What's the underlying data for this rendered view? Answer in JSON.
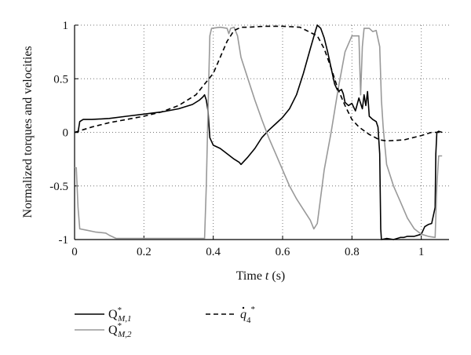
{
  "chart_data": {
    "type": "line",
    "title": "",
    "xlabel": "Time t (s)",
    "xlabel_parts": {
      "prefix": "Time ",
      "var": "t",
      "suffix": " (s)"
    },
    "ylabel": "Normalized torques and velocities",
    "xlim": [
      0,
      1.08
    ],
    "ylim": [
      -1,
      1
    ],
    "xticks": [
      "0",
      "0.2",
      "0.4",
      "0.6",
      "0.8",
      "1"
    ],
    "yticks": [
      "1",
      "0.5",
      "0",
      "-0.5",
      "-1"
    ],
    "xtick_values": [
      0,
      0.2,
      0.4,
      0.6,
      0.8,
      1.0
    ],
    "ytick_values": [
      1,
      0.5,
      0,
      -0.5,
      -1
    ],
    "grid": true,
    "legend_position": "bottom",
    "series": [
      {
        "name": "Q*_M,1",
        "label": {
          "base": "Q",
          "sup": "*",
          "sub": "M,1"
        },
        "color": "#000000",
        "style": "solid",
        "points": [
          [
            0,
            0
          ],
          [
            0.01,
            0
          ],
          [
            0.015,
            0.1
          ],
          [
            0.025,
            0.12
          ],
          [
            0.05,
            0.12
          ],
          [
            0.1,
            0.13
          ],
          [
            0.15,
            0.15
          ],
          [
            0.2,
            0.17
          ],
          [
            0.25,
            0.19
          ],
          [
            0.3,
            0.22
          ],
          [
            0.34,
            0.26
          ],
          [
            0.36,
            0.3
          ],
          [
            0.37,
            0.33
          ],
          [
            0.375,
            0.35
          ],
          [
            0.38,
            0.3
          ],
          [
            0.385,
            0.2
          ],
          [
            0.39,
            -0.05
          ],
          [
            0.4,
            -0.12
          ],
          [
            0.42,
            -0.15
          ],
          [
            0.44,
            -0.2
          ],
          [
            0.46,
            -0.25
          ],
          [
            0.475,
            -0.28
          ],
          [
            0.48,
            -0.3
          ],
          [
            0.5,
            -0.23
          ],
          [
            0.52,
            -0.15
          ],
          [
            0.54,
            -0.05
          ],
          [
            0.56,
            0.02
          ],
          [
            0.58,
            0.08
          ],
          [
            0.6,
            0.14
          ],
          [
            0.62,
            0.22
          ],
          [
            0.64,
            0.35
          ],
          [
            0.66,
            0.55
          ],
          [
            0.68,
            0.78
          ],
          [
            0.695,
            0.95
          ],
          [
            0.7,
            1.0
          ],
          [
            0.71,
            0.97
          ],
          [
            0.72,
            0.88
          ],
          [
            0.73,
            0.75
          ],
          [
            0.74,
            0.6
          ],
          [
            0.75,
            0.45
          ],
          [
            0.76,
            0.38
          ],
          [
            0.77,
            0.4
          ],
          [
            0.775,
            0.36
          ],
          [
            0.78,
            0.28
          ],
          [
            0.79,
            0.25
          ],
          [
            0.8,
            0.27
          ],
          [
            0.81,
            0.2
          ],
          [
            0.82,
            0.32
          ],
          [
            0.83,
            0.22
          ],
          [
            0.835,
            0.35
          ],
          [
            0.84,
            0.25
          ],
          [
            0.845,
            0.38
          ],
          [
            0.85,
            0.15
          ],
          [
            0.86,
            0.12
          ],
          [
            0.87,
            0.1
          ],
          [
            0.875,
            0.05
          ],
          [
            0.88,
            -0.2
          ],
          [
            0.883,
            -0.9
          ],
          [
            0.885,
            -1.0
          ],
          [
            0.9,
            -0.99
          ],
          [
            0.92,
            -1.0
          ],
          [
            0.94,
            -0.98
          ],
          [
            0.95,
            -0.98
          ],
          [
            0.96,
            -0.97
          ],
          [
            0.98,
            -0.97
          ],
          [
            1.0,
            -0.95
          ],
          [
            1.01,
            -0.88
          ],
          [
            1.02,
            -0.86
          ],
          [
            1.03,
            -0.85
          ],
          [
            1.04,
            -0.7
          ],
          [
            1.042,
            -0.2
          ],
          [
            1.045,
            0.0
          ],
          [
            1.05,
            0.01
          ],
          [
            1.06,
            0.0
          ]
        ]
      },
      {
        "name": "Q*_M,2",
        "label": {
          "base": "Q",
          "sup": "*",
          "sub": "M,2"
        },
        "color": "#999999",
        "style": "solid",
        "points": [
          [
            0,
            -0.33
          ],
          [
            0.005,
            -0.33
          ],
          [
            0.01,
            -0.7
          ],
          [
            0.015,
            -0.9
          ],
          [
            0.03,
            -0.91
          ],
          [
            0.06,
            -0.93
          ],
          [
            0.09,
            -0.94
          ],
          [
            0.1,
            -0.96
          ],
          [
            0.12,
            -0.99
          ],
          [
            0.15,
            -0.99
          ],
          [
            0.2,
            -0.99
          ],
          [
            0.25,
            -0.99
          ],
          [
            0.3,
            -0.99
          ],
          [
            0.35,
            -0.99
          ],
          [
            0.375,
            -0.99
          ],
          [
            0.38,
            -0.5
          ],
          [
            0.385,
            0.2
          ],
          [
            0.39,
            0.9
          ],
          [
            0.395,
            0.97
          ],
          [
            0.42,
            0.98
          ],
          [
            0.44,
            0.97
          ],
          [
            0.445,
            0.92
          ],
          [
            0.45,
            0.97
          ],
          [
            0.46,
            0.98
          ],
          [
            0.47,
            0.9
          ],
          [
            0.48,
            0.7
          ],
          [
            0.5,
            0.5
          ],
          [
            0.52,
            0.3
          ],
          [
            0.54,
            0.12
          ],
          [
            0.56,
            -0.05
          ],
          [
            0.58,
            -0.2
          ],
          [
            0.6,
            -0.35
          ],
          [
            0.62,
            -0.5
          ],
          [
            0.64,
            -0.62
          ],
          [
            0.66,
            -0.72
          ],
          [
            0.68,
            -0.82
          ],
          [
            0.69,
            -0.9
          ],
          [
            0.7,
            -0.85
          ],
          [
            0.71,
            -0.6
          ],
          [
            0.72,
            -0.35
          ],
          [
            0.74,
            0.0
          ],
          [
            0.76,
            0.4
          ],
          [
            0.78,
            0.75
          ],
          [
            0.8,
            0.9
          ],
          [
            0.81,
            0.9
          ],
          [
            0.82,
            0.9
          ],
          [
            0.825,
            0.35
          ],
          [
            0.83,
            0.8
          ],
          [
            0.835,
            0.97
          ],
          [
            0.85,
            0.97
          ],
          [
            0.86,
            0.94
          ],
          [
            0.87,
            0.95
          ],
          [
            0.88,
            0.8
          ],
          [
            0.885,
            0.3
          ],
          [
            0.89,
            0.05
          ],
          [
            0.9,
            -0.3
          ],
          [
            0.92,
            -0.5
          ],
          [
            0.94,
            -0.65
          ],
          [
            0.96,
            -0.8
          ],
          [
            0.98,
            -0.9
          ],
          [
            1.0,
            -0.95
          ],
          [
            1.02,
            -0.97
          ],
          [
            1.04,
            -0.98
          ],
          [
            1.045,
            -0.5
          ],
          [
            1.05,
            -0.22
          ],
          [
            1.06,
            -0.22
          ]
        ]
      },
      {
        "name": "dq*_4",
        "label": {
          "base": "q",
          "sup": "*",
          "sub": "4",
          "dot": true
        },
        "color": "#000000",
        "style": "dashed",
        "points": [
          [
            0,
            0
          ],
          [
            0.02,
            0.02
          ],
          [
            0.05,
            0.05
          ],
          [
            0.1,
            0.09
          ],
          [
            0.15,
            0.12
          ],
          [
            0.2,
            0.15
          ],
          [
            0.25,
            0.19
          ],
          [
            0.3,
            0.25
          ],
          [
            0.35,
            0.35
          ],
          [
            0.4,
            0.55
          ],
          [
            0.42,
            0.7
          ],
          [
            0.44,
            0.85
          ],
          [
            0.46,
            0.95
          ],
          [
            0.48,
            0.98
          ],
          [
            0.5,
            0.98
          ],
          [
            0.55,
            0.99
          ],
          [
            0.6,
            0.99
          ],
          [
            0.65,
            0.98
          ],
          [
            0.7,
            0.9
          ],
          [
            0.72,
            0.78
          ],
          [
            0.74,
            0.6
          ],
          [
            0.76,
            0.4
          ],
          [
            0.78,
            0.25
          ],
          [
            0.8,
            0.12
          ],
          [
            0.82,
            0.05
          ],
          [
            0.85,
            -0.02
          ],
          [
            0.88,
            -0.07
          ],
          [
            0.9,
            -0.08
          ],
          [
            0.95,
            -0.07
          ],
          [
            1.0,
            -0.03
          ],
          [
            1.03,
            0.0
          ],
          [
            1.06,
            0.0
          ]
        ]
      }
    ]
  }
}
